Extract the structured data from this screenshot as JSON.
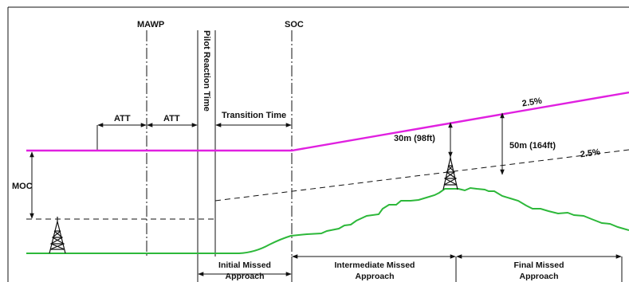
{
  "labels": {
    "mawp": "MAWP",
    "soc": "SOC",
    "pilot_reaction_time": "Pilot Reaction Time",
    "att_1": "ATT",
    "att_2": "ATT",
    "transition_time": "Transition Time",
    "moc": "MOC",
    "climb_gradient_upper": "2.5%",
    "climb_gradient_lower": "2.5%",
    "clearance_30m": "30m (98ft)",
    "clearance_50m": "50m (164ft)",
    "phases": {
      "initial": [
        "Initial Missed",
        "Approach"
      ],
      "intermediate": [
        "Intermediate Missed",
        "Approach"
      ],
      "final": [
        "Final Missed",
        "Approach"
      ]
    }
  },
  "colors": {
    "flight_path": "#e020e0",
    "terrain": "#2db83a",
    "lines": "#111111"
  },
  "icons": [
    "obstacle-tower-icon",
    "obstacle-tower-icon"
  ]
}
